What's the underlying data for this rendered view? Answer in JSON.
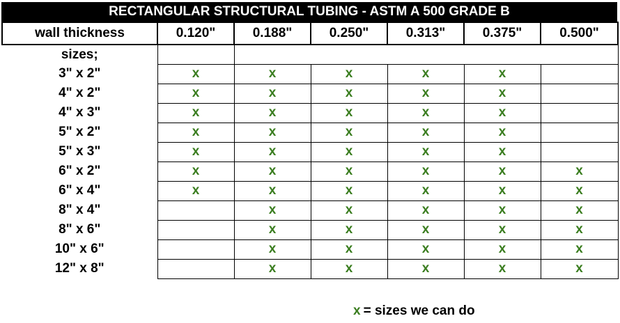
{
  "title": "RECTANGULAR STRUCTURAL TUBING - ASTM A 500 GRADE B",
  "header_label": "wall thickness",
  "thicknesses": [
    "0.120\"",
    "0.188\"",
    "0.250\"",
    "0.313\"",
    "0.375\"",
    "0.500\""
  ],
  "sizes_label": "sizes;",
  "mark_symbol": "x",
  "rows": [
    {
      "size": "3\" x 2\"",
      "available": [
        true,
        true,
        true,
        true,
        true,
        false
      ]
    },
    {
      "size": "4\" x 2\"",
      "available": [
        true,
        true,
        true,
        true,
        true,
        false
      ]
    },
    {
      "size": "4\" x 3\"",
      "available": [
        true,
        true,
        true,
        true,
        true,
        false
      ]
    },
    {
      "size": "5\" x 2\"",
      "available": [
        true,
        true,
        true,
        true,
        true,
        false
      ]
    },
    {
      "size": "5\" x 3\"",
      "available": [
        true,
        true,
        true,
        true,
        true,
        false
      ]
    },
    {
      "size": "6\" x 2\"",
      "available": [
        true,
        true,
        true,
        true,
        true,
        true
      ]
    },
    {
      "size": "6\" x 4\"",
      "available": [
        true,
        true,
        true,
        true,
        true,
        true
      ]
    },
    {
      "size": "8\" x 4\"",
      "available": [
        false,
        true,
        true,
        true,
        true,
        true
      ]
    },
    {
      "size": "8\" x 6\"",
      "available": [
        false,
        true,
        true,
        true,
        true,
        true
      ]
    },
    {
      "size": "10\" x 6\"",
      "available": [
        false,
        true,
        true,
        true,
        true,
        true
      ]
    },
    {
      "size": "12\" x 8\"",
      "available": [
        false,
        true,
        true,
        true,
        true,
        true
      ]
    }
  ],
  "legend": {
    "symbol": "x",
    "text": "= sizes we can do"
  },
  "colors": {
    "mark": "#3a7d1f",
    "title_bg": "#000000",
    "title_fg": "#ffffff"
  }
}
